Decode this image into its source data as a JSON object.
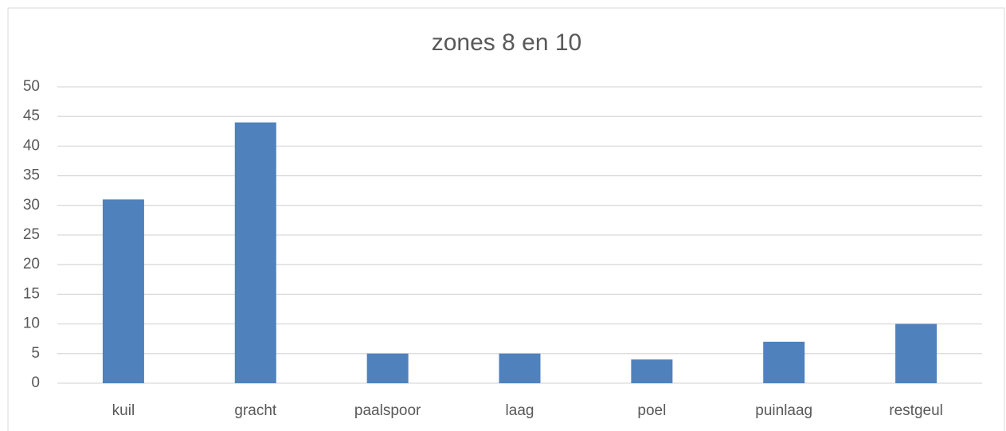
{
  "chart_data": {
    "type": "bar",
    "title": "zones 8 en 10",
    "categories": [
      "kuil",
      "gracht",
      "paalspoor",
      "laag",
      "poel",
      "puinlaag",
      "restgeul"
    ],
    "values": [
      31,
      44,
      5,
      5,
      4,
      7,
      10
    ],
    "color": "#4f81bd",
    "ylim": [
      0,
      50
    ],
    "yticks": [
      0,
      5,
      10,
      15,
      20,
      25,
      30,
      35,
      40,
      45,
      50
    ],
    "grid": true
  }
}
